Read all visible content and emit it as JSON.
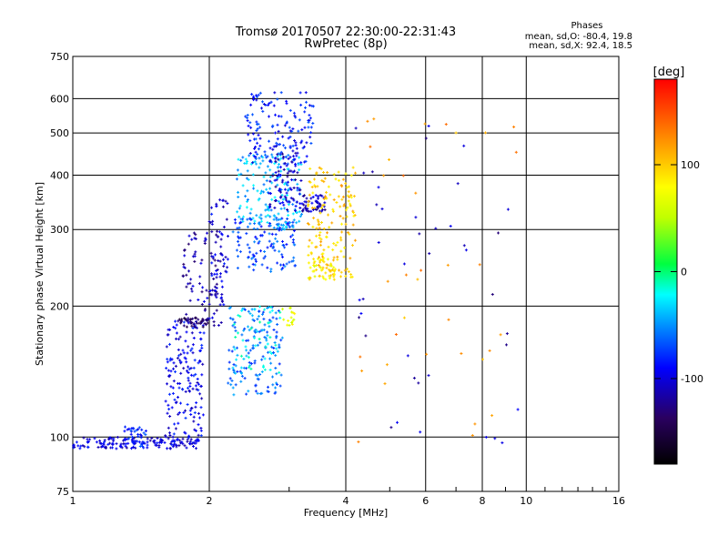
{
  "chart_data": {
    "type": "scatter",
    "title": "Tromsø 20170507 22:30:00-22:31:43",
    "subtitle": "RwPretec (8p)",
    "xlabel": "Frequency [MHz]",
    "ylabel": "Stationary phase Virtual Height [km]",
    "x_scale": "log",
    "y_scale": "log",
    "xlim": [
      1,
      16
    ],
    "ylim": [
      75,
      750
    ],
    "x_ticks": [
      1,
      2,
      4,
      6,
      8,
      10,
      16
    ],
    "x_tick_labels": [
      "1",
      "2",
      "4",
      "6",
      "8",
      "10",
      "16"
    ],
    "y_ticks": [
      75,
      100,
      200,
      300,
      400,
      500,
      600,
      750
    ],
    "y_tick_labels": [
      "75",
      "100",
      "200",
      "300",
      "400",
      "500",
      "600",
      "750"
    ],
    "grid": true,
    "colorbar": {
      "label": "[deg]",
      "min": -180,
      "max": 180,
      "ticks": [
        100,
        0,
        -100
      ],
      "tick_labels": [
        "100",
        "0",
        "-100"
      ],
      "colors": [
        "#000000",
        "#2a0060",
        "#0000ff",
        "#0090ff",
        "#00ffff",
        "#00ff40",
        "#c0ff00",
        "#ffff00",
        "#ff8000",
        "#ff0000"
      ]
    },
    "stats": {
      "heading": "Phases",
      "line_o": "mean, sd,O: -80.4, 19.8",
      "line_x": "mean, sd,X:  92.4, 18.5"
    },
    "clusters": [
      {
        "x": [
          1.0,
          1.9
        ],
        "y": [
          94,
          100
        ],
        "phase": -100,
        "n": 150
      },
      {
        "x": [
          1.3,
          1.45
        ],
        "y": [
          95,
          106
        ],
        "phase": -80,
        "n": 40
      },
      {
        "x": [
          1.6,
          1.95
        ],
        "y": [
          100,
          185
        ],
        "phase": -95,
        "n": 160
      },
      {
        "x": [
          1.75,
          2.15
        ],
        "y": [
          180,
          300
        ],
        "phase": -115,
        "n": 90
      },
      {
        "x": [
          1.7,
          2.05
        ],
        "y": [
          179,
          188
        ],
        "phase": -135,
        "n": 45
      },
      {
        "x": [
          2.0,
          2.2
        ],
        "y": [
          200,
          360
        ],
        "phase": -100,
        "n": 60
      },
      {
        "x": [
          2.2,
          2.9
        ],
        "y": [
          125,
          200
        ],
        "phase": -60,
        "n": 140
      },
      {
        "x": [
          2.25,
          2.9
        ],
        "y": [
          140,
          200
        ],
        "phase": -25,
        "n": 60
      },
      {
        "x": [
          2.25,
          3.1
        ],
        "y": [
          240,
          320
        ],
        "phase": -70,
        "n": 130
      },
      {
        "x": [
          2.3,
          3.2
        ],
        "y": [
          300,
          450
        ],
        "phase": -40,
        "n": 170
      },
      {
        "x": [
          2.4,
          3.4
        ],
        "y": [
          420,
          620
        ],
        "phase": -85,
        "n": 150
      },
      {
        "x": [
          2.7,
          3.2
        ],
        "y": [
          330,
          450
        ],
        "phase": -105,
        "n": 80
      },
      {
        "x": [
          3.2,
          3.6
        ],
        "y": [
          330,
          360
        ],
        "phase": -110,
        "n": 50
      },
      {
        "x": [
          3.3,
          4.2
        ],
        "y": [
          230,
          420
        ],
        "phase": 100,
        "n": 170
      },
      {
        "x": [
          3.3,
          3.8
        ],
        "y": [
          230,
          260
        ],
        "phase": 80,
        "n": 40
      },
      {
        "x": [
          2.9,
          3.1
        ],
        "y": [
          180,
          200
        ],
        "phase": 70,
        "n": 15
      },
      {
        "x": [
          4.2,
          9.6
        ],
        "y": [
          90,
          560
        ],
        "phase": -110,
        "n": 40
      },
      {
        "x": [
          4.2,
          9.6
        ],
        "y": [
          90,
          560
        ],
        "phase": 120,
        "n": 35
      }
    ]
  }
}
